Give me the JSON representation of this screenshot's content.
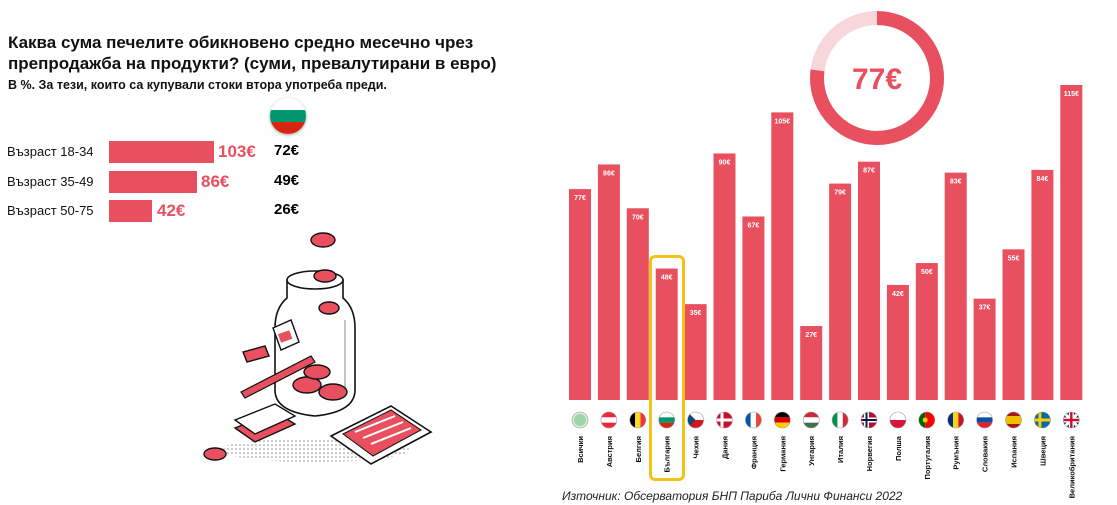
{
  "title": "Каква сума печелите обикновено средно месечно чрез препродажба на продукти? (суми, превалутирани в евро)",
  "subtitle": "В %. За тези, които са купували стоки втора употреба преди.",
  "age_groups": [
    {
      "label": "Възраст 18-34",
      "value": 103,
      "value_text": "103€",
      "bg_text": "72€"
    },
    {
      "label": "Възраст 35-49",
      "value": 86,
      "value_text": "86€",
      "bg_text": "49€"
    },
    {
      "label": "Възраст 50-75",
      "value": 42,
      "value_text": "42€",
      "bg_text": "26€"
    }
  ],
  "average": {
    "value": 77,
    "text": "77€"
  },
  "source": "Източник: Обсерватория БНП Париба Лични Финанси 2022",
  "colors": {
    "bar": "#e8505f",
    "highlight": "#f2c21b",
    "ring_track": "#f8d7dc"
  },
  "chart_data": {
    "type": "bar",
    "categories": [
      "Всички",
      "Австрия",
      "Белгия",
      "България",
      "Чехия",
      "Дания",
      "Франция",
      "Германия",
      "Унгария",
      "Италия",
      "Норвегия",
      "Полша",
      "Португалия",
      "Румъния",
      "Словакия",
      "Испания",
      "Швеция",
      "Великобритания"
    ],
    "values": [
      77,
      86,
      70,
      48,
      35,
      90,
      67,
      105,
      27,
      79,
      87,
      42,
      50,
      83,
      37,
      55,
      84,
      115
    ],
    "value_labels": [
      "77€",
      "86€",
      "70€",
      "48€",
      "35€",
      "90€",
      "67€",
      "105€",
      "27€",
      "79€",
      "87€",
      "42€",
      "50€",
      "83€",
      "37€",
      "55€",
      "84€",
      "115€"
    ],
    "highlighted": "България",
    "ylim": [
      0,
      115
    ]
  }
}
